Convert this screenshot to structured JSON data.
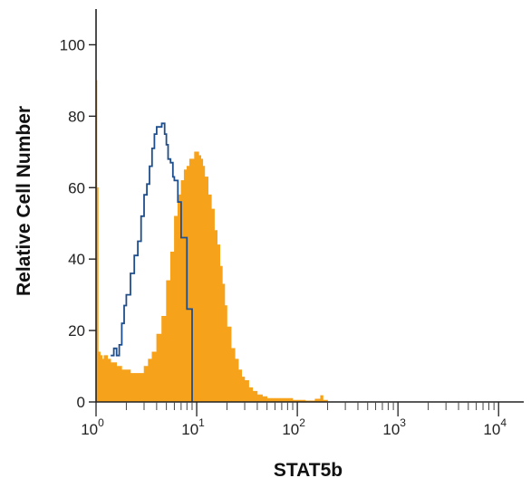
{
  "chart_data": {
    "type": "histogram",
    "xlabel": "STAT5b",
    "ylabel": "Relative Cell Number",
    "x_scale": "log",
    "xlim": [
      1,
      17782
    ],
    "ylim": [
      0,
      110
    ],
    "y_ticks": [
      0,
      20,
      40,
      60,
      80,
      100
    ],
    "x_ticks": [
      {
        "value": 1,
        "base": "10",
        "exp": "0"
      },
      {
        "value": 10,
        "base": "10",
        "exp": "1"
      },
      {
        "value": 100,
        "base": "10",
        "exp": "2"
      },
      {
        "value": 1000,
        "base": "10",
        "exp": "3"
      },
      {
        "value": 10000,
        "base": "10",
        "exp": "4"
      }
    ],
    "series": [
      {
        "style": "filled",
        "color": "#F7A21B",
        "x": [
          1.0,
          1.02,
          1.05,
          1.1,
          1.15,
          1.2,
          1.3,
          1.4,
          1.5,
          1.6,
          1.8,
          2.0,
          2.2,
          2.5,
          2.8,
          3.0,
          3.3,
          3.6,
          4.0,
          4.5,
          5.0,
          5.5,
          6.0,
          6.5,
          7.0,
          7.5,
          8.0,
          8.5,
          9.0,
          9.5,
          10.0,
          10.5,
          11.0,
          11.5,
          12.0,
          13.0,
          14.0,
          15.0,
          16.0,
          17.0,
          18.0,
          19.0,
          20.0,
          22.0,
          24.0,
          26.0,
          28.0,
          30.0,
          33.0,
          36.0,
          40.0,
          45.0,
          50.0,
          60.0,
          70.0,
          80.0,
          90.0,
          100.0,
          120.0,
          150.0,
          170.0,
          180.0,
          200.0
        ],
        "y": [
          90,
          60,
          14,
          13,
          12,
          13,
          12,
          11,
          11,
          10,
          9,
          9,
          8,
          8,
          8,
          10,
          12,
          14,
          19,
          24,
          34,
          42,
          52,
          58,
          62,
          65,
          66,
          68,
          68,
          70,
          70,
          69,
          68,
          66,
          63,
          58,
          54,
          48,
          44,
          38,
          33,
          27,
          21,
          15,
          12,
          9,
          7,
          6,
          4,
          3,
          2,
          1.5,
          1,
          1,
          1,
          1,
          0.5,
          0.5,
          0.3,
          0.8,
          1.8,
          0.5,
          0
        ]
      },
      {
        "style": "outline",
        "color": "#1F4E8C",
        "x": [
          1.4,
          1.5,
          1.6,
          1.7,
          1.8,
          1.9,
          2.0,
          2.2,
          2.4,
          2.6,
          2.8,
          3.0,
          3.2,
          3.4,
          3.6,
          3.8,
          4.0,
          4.2,
          4.5,
          4.8,
          5.0,
          5.2,
          5.5,
          5.8,
          6.0,
          6.5,
          7.0,
          8.0,
          9.0
        ],
        "y": [
          13,
          15,
          13,
          16,
          22,
          27,
          30,
          36,
          41,
          45,
          52,
          58,
          61,
          66,
          71,
          75,
          77,
          77,
          78,
          75,
          72,
          68,
          67,
          63,
          62,
          56,
          46,
          26,
          0
        ]
      }
    ]
  }
}
